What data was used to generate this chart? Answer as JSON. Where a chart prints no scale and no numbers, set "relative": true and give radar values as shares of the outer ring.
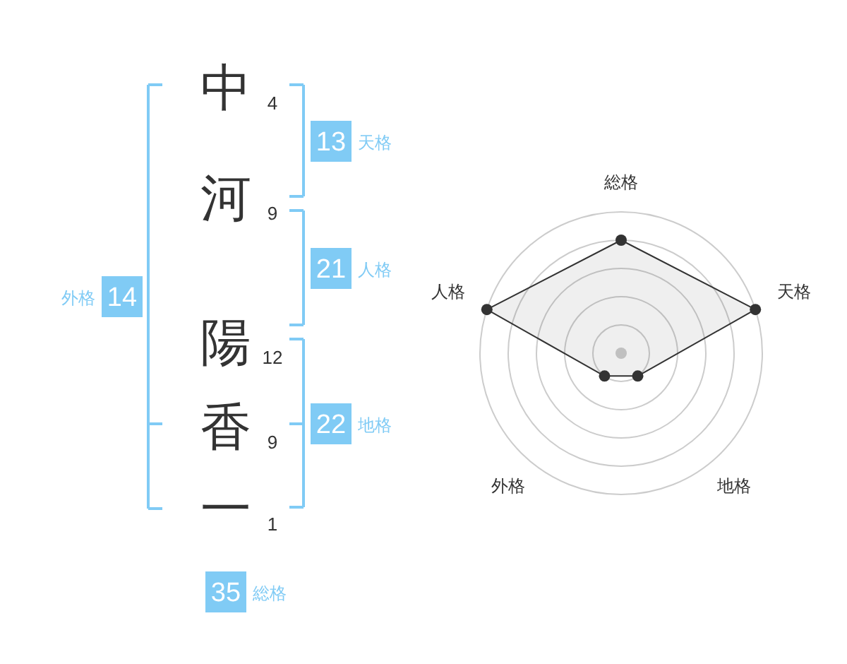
{
  "chart_data": [
    {
      "type": "other",
      "categories": [
        "中",
        "河",
        "陽",
        "香",
        "一"
      ],
      "values": [
        4,
        9,
        12,
        9,
        1
      ],
      "data_labels": true,
      "annotations": [
        "13",
        "天格",
        "21",
        "人格",
        "22",
        "地格",
        "14",
        "外格",
        "35",
        "総格"
      ]
    },
    {
      "type": "radar",
      "categories": [
        "総格",
        "天格",
        "地格",
        "外格",
        "人格"
      ],
      "relative": true,
      "marker": "circle",
      "line_style": "solid",
      "series": [
        {
          "color": "#333333",
          "values": [
            0.8,
            1,
            0.2,
            0.2,
            1
          ]
        }
      ]
    }
  ]
}
